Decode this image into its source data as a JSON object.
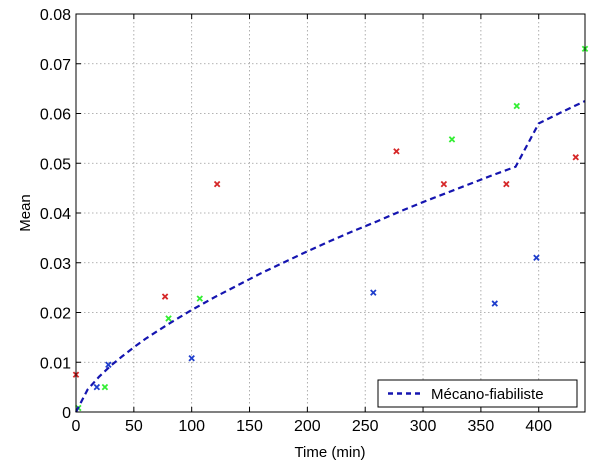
{
  "chart_data": {
    "type": "scatter",
    "xlabel": "Time (min)",
    "ylabel": "Mean",
    "xlim": [
      0,
      440
    ],
    "ylim": [
      0,
      0.08
    ],
    "xticks": [
      0,
      50,
      100,
      150,
      200,
      250,
      300,
      350,
      400
    ],
    "yticks": [
      0,
      0.01,
      0.02,
      0.03,
      0.04,
      0.05,
      0.06,
      0.07,
      0.08
    ],
    "xtick_labels": [
      "0",
      "50",
      "100",
      "150",
      "200",
      "250",
      "300",
      "350",
      "400"
    ],
    "ytick_labels": [
      "0",
      "0.01",
      "0.02",
      "0.03",
      "0.04",
      "0.05",
      "0.06",
      "0.07",
      "0.08"
    ],
    "grid": true,
    "legend_position": "bottom-right",
    "series": [
      {
        "kind": "scatter",
        "marker": "x",
        "color": "#d62728",
        "points": [
          [
            0,
            0.0075
          ],
          [
            77,
            0.0232
          ],
          [
            122,
            0.0458
          ],
          [
            277,
            0.0524
          ],
          [
            318,
            0.0458
          ],
          [
            372,
            0.0458
          ],
          [
            432,
            0.0512
          ]
        ]
      },
      {
        "kind": "scatter",
        "marker": "x",
        "color": "#33ee33",
        "points": [
          [
            2,
            0.0008
          ],
          [
            25,
            0.005
          ],
          [
            80,
            0.0188
          ],
          [
            107,
            0.0228
          ],
          [
            325,
            0.0548
          ],
          [
            381,
            0.0615
          ],
          [
            440,
            0.073
          ]
        ]
      },
      {
        "kind": "scatter",
        "marker": "x",
        "color": "#1f3ecc",
        "points": [
          [
            18,
            0.005
          ],
          [
            28,
            0.0095
          ],
          [
            100,
            0.0108
          ],
          [
            257,
            0.024
          ],
          [
            362,
            0.0218
          ],
          [
            398,
            0.031
          ]
        ]
      },
      {
        "kind": "line",
        "name": "Mécano-fiabiliste",
        "color": "#1515b0",
        "dash": "dashed",
        "points": [
          [
            0,
            0
          ],
          [
            10,
            0.0045
          ],
          [
            20,
            0.0071
          ],
          [
            30,
            0.0093
          ],
          [
            40,
            0.0112
          ],
          [
            50,
            0.013
          ],
          [
            60,
            0.0147
          ],
          [
            70,
            0.0162
          ],
          [
            80,
            0.0177
          ],
          [
            90,
            0.0191
          ],
          [
            100,
            0.0205
          ],
          [
            120,
            0.0231
          ],
          [
            140,
            0.0255
          ],
          [
            160,
            0.0279
          ],
          [
            180,
            0.0301
          ],
          [
            200,
            0.0323
          ],
          [
            220,
            0.0344
          ],
          [
            240,
            0.0364
          ],
          [
            260,
            0.0383
          ],
          [
            280,
            0.0403
          ],
          [
            300,
            0.0422
          ],
          [
            320,
            0.044
          ],
          [
            340,
            0.0458
          ],
          [
            360,
            0.0476
          ],
          [
            380,
            0.0493
          ],
          [
            400,
            0.058
          ],
          [
            420,
            0.0603
          ],
          [
            440,
            0.0625
          ]
        ]
      }
    ]
  }
}
